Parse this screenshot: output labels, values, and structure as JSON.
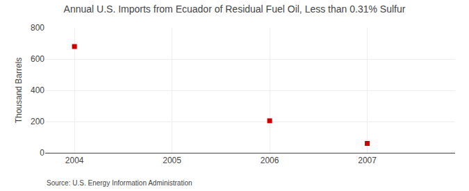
{
  "chart_data": {
    "type": "scatter",
    "title": "Annual U.S. Imports from Ecuador of Residual Fuel Oil, Less than 0.31% Sulfur",
    "y_label": "Thousand Barrels",
    "annotations": [
      "Source: U.S. Energy Information Administration"
    ],
    "x": [
      2004,
      2006,
      2007
    ],
    "values": [
      680,
      205,
      60
    ],
    "color": "#CC0000",
    "marker": "square",
    "xlim": [
      2003.7,
      2007.9
    ],
    "xticks": [
      2004,
      2005,
      2006,
      2007
    ],
    "ylim": [
      0,
      800
    ],
    "yticks": [
      0,
      200,
      400,
      600,
      800
    ],
    "grid": true
  }
}
